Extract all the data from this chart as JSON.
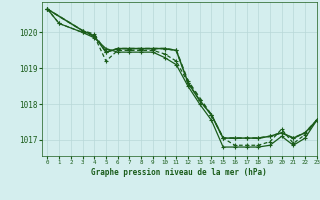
{
  "background_color": "#d4eeee",
  "grid_color": "#b8d8d8",
  "line_color": "#1a5c1a",
  "title": "Graphe pression niveau de la mer (hPa)",
  "xlim": [
    -0.5,
    23
  ],
  "ylim": [
    1016.55,
    1020.85
  ],
  "yticks": [
    1017,
    1018,
    1019,
    1020
  ],
  "xticks": [
    0,
    1,
    2,
    3,
    4,
    5,
    6,
    7,
    8,
    9,
    10,
    11,
    12,
    13,
    14,
    15,
    16,
    17,
    18,
    19,
    20,
    21,
    22,
    23
  ],
  "series": [
    {
      "x": [
        0,
        1,
        3,
        4,
        5,
        6,
        7,
        8,
        9,
        10,
        11,
        12,
        13,
        14,
        15,
        16,
        17,
        18,
        19,
        20,
        21,
        22,
        23
      ],
      "y": [
        1020.65,
        1020.25,
        1020.0,
        1019.85,
        1019.55,
        1019.45,
        1019.45,
        1019.45,
        1019.45,
        1019.3,
        1019.1,
        1018.5,
        1018.0,
        1017.55,
        1016.8,
        1016.8,
        1016.8,
        1016.8,
        1016.85,
        1017.1,
        1016.85,
        1017.05,
        1017.55
      ],
      "dashed": false,
      "lw": 0.9
    },
    {
      "x": [
        0,
        1,
        3,
        4,
        5,
        6,
        7,
        8,
        9,
        10,
        11,
        12,
        13,
        14,
        15,
        16,
        17,
        18,
        19,
        20,
        21,
        22,
        23
      ],
      "y": [
        1020.65,
        1020.25,
        1020.0,
        1019.9,
        1019.2,
        1019.5,
        1019.5,
        1019.5,
        1019.5,
        1019.4,
        1019.2,
        1018.6,
        1018.1,
        1017.7,
        1017.05,
        1016.85,
        1016.85,
        1016.85,
        1016.95,
        1017.3,
        1016.9,
        1017.15,
        1017.55
      ],
      "dashed": true,
      "lw": 0.9
    },
    {
      "x": [
        0,
        3,
        4,
        5,
        6,
        7,
        8,
        9,
        10,
        11,
        12,
        13,
        14,
        15,
        16,
        17,
        18,
        19,
        20,
        21,
        22,
        23
      ],
      "y": [
        1020.65,
        1020.05,
        1019.9,
        1019.45,
        1019.55,
        1019.55,
        1019.55,
        1019.55,
        1019.55,
        1019.5,
        1018.6,
        1018.1,
        1017.7,
        1017.05,
        1017.05,
        1017.05,
        1017.05,
        1017.1,
        1017.2,
        1017.05,
        1017.2,
        1017.55
      ],
      "dashed": false,
      "lw": 1.1
    },
    {
      "x": [
        0,
        3,
        4,
        5,
        6,
        7,
        8,
        9,
        10,
        11,
        12,
        14,
        15,
        16,
        17,
        18,
        19,
        20,
        21,
        22,
        23
      ],
      "y": [
        1020.65,
        1020.05,
        1019.95,
        1019.45,
        1019.55,
        1019.55,
        1019.55,
        1019.55,
        1019.55,
        1019.5,
        1018.65,
        1017.7,
        1017.05,
        1017.05,
        1017.05,
        1017.05,
        1017.1,
        1017.2,
        1017.05,
        1017.2,
        1017.55
      ],
      "dashed": true,
      "lw": 1.1
    }
  ]
}
